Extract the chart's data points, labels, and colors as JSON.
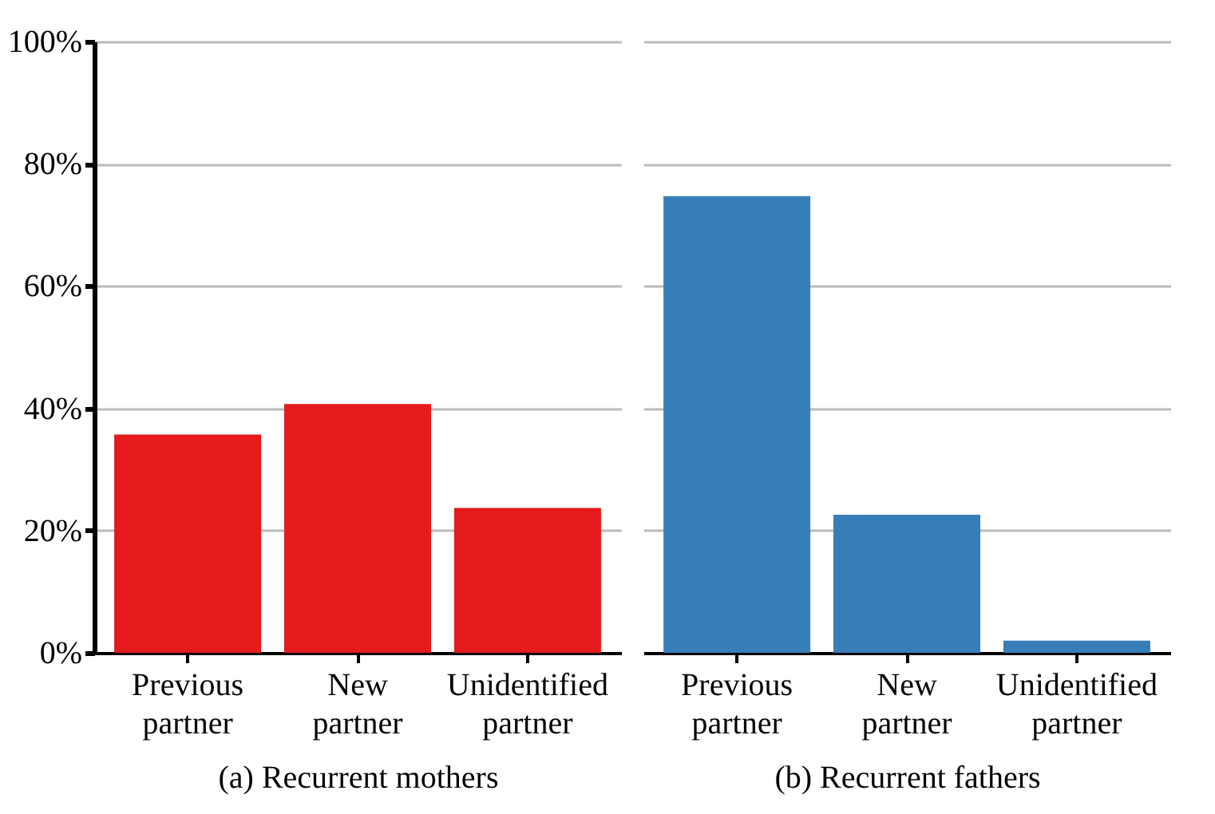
{
  "chart_data": [
    {
      "type": "bar",
      "categories": [
        "Previous\npartner",
        "New\npartner",
        "Unidentified\npartner"
      ],
      "values": [
        35.7,
        40.7,
        23.7
      ],
      "color": "#e41a1c",
      "xlabel": "(a) Recurrent mothers",
      "ylim": [
        0,
        100
      ],
      "yticks": [
        {
          "value": 0,
          "label": "0%"
        },
        {
          "value": 20,
          "label": "20%"
        },
        {
          "value": 40,
          "label": "40%"
        },
        {
          "value": 60,
          "label": "60%"
        },
        {
          "value": 80,
          "label": "80%"
        },
        {
          "value": 100,
          "label": "100%"
        }
      ],
      "grid": "y"
    },
    {
      "type": "bar",
      "categories": [
        "Previous\npartner",
        "New\npartner",
        "Unidentified\npartner"
      ],
      "values": [
        74.7,
        22.6,
        2.0
      ],
      "color": "#377eb8",
      "xlabel": "(b) Recurrent fathers",
      "ylim": [
        0,
        100
      ],
      "yticks": [
        {
          "value": 0,
          "label": null
        },
        {
          "value": 20,
          "label": null
        },
        {
          "value": 40,
          "label": null
        },
        {
          "value": 60,
          "label": null
        },
        {
          "value": 80,
          "label": null
        },
        {
          "value": 100,
          "label": null
        }
      ],
      "grid": "y",
      "tick_labels": "x"
    }
  ]
}
